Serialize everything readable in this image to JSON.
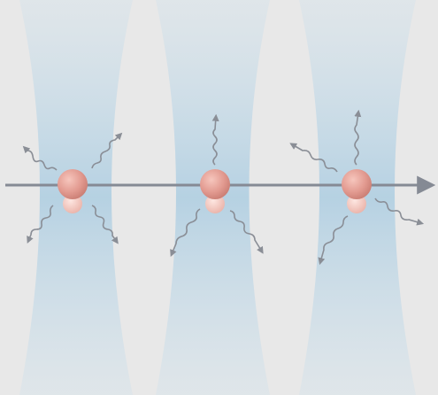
{
  "colors": {
    "background": "#e8e8e8",
    "beam": "#bcd6e6",
    "axis": "#858a94",
    "atom_large": "#e8a39a",
    "atom_small": "#f2c5bd",
    "photon": "#8a8e96"
  },
  "traps": [
    {
      "id": "trap-1",
      "photons": 4
    },
    {
      "id": "trap-2",
      "photons": 3
    },
    {
      "id": "trap-3",
      "photons": 4
    }
  ],
  "icons": {
    "atom": "atom-pair",
    "photon": "wavy-arrow",
    "axis": "arrow-right"
  }
}
